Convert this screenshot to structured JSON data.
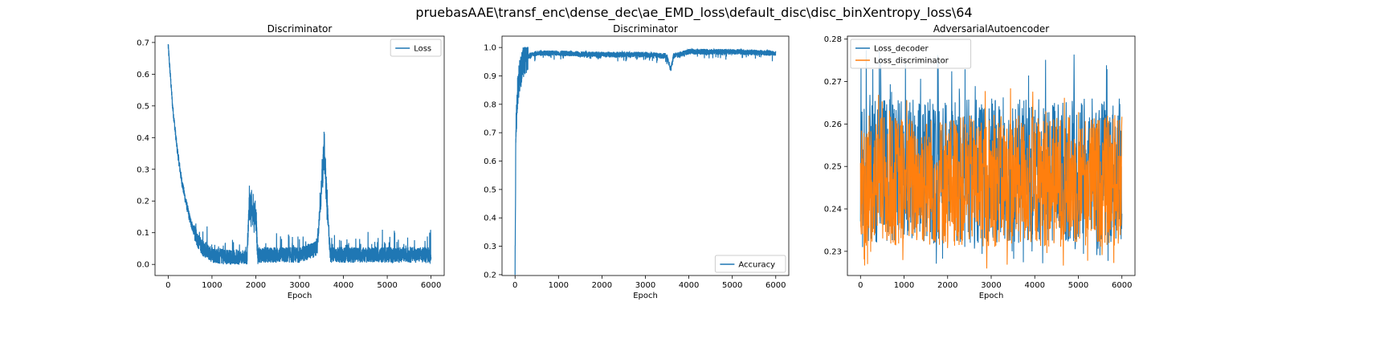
{
  "suptitle": "pruebasAAE\\transf_enc\\dense_dec\\ae_EMD_loss\\default_disc\\disc_binXentropy_loss\\64",
  "colors": {
    "blue": "#1f77b4",
    "orange": "#ff7f0e"
  },
  "chart_data": [
    {
      "type": "line",
      "title": "Discriminator",
      "xlabel": "Epoch",
      "ylabel": "",
      "xlim": [
        -300,
        6300
      ],
      "ylim": [
        -0.035,
        0.72
      ],
      "xticks": [
        0,
        1000,
        2000,
        3000,
        4000,
        5000,
        6000
      ],
      "yticks": [
        0.0,
        0.1,
        0.2,
        0.3,
        0.4,
        0.5,
        0.6,
        0.7
      ],
      "legend_position": "upper-right",
      "series": [
        {
          "name": "Loss",
          "color": "#1f77b4",
          "description_points": [
            [
              0,
              0.69
            ],
            [
              100,
              0.5
            ],
            [
              200,
              0.37
            ],
            [
              300,
              0.27
            ],
            [
              400,
              0.2
            ],
            [
              500,
              0.14
            ],
            [
              600,
              0.1
            ],
            [
              700,
              0.07
            ],
            [
              800,
              0.05
            ],
            [
              1000,
              0.03
            ],
            [
              1500,
              0.02
            ],
            [
              1800,
              0.02
            ],
            [
              1850,
              0.19
            ],
            [
              2000,
              0.15
            ],
            [
              2050,
              0.03
            ],
            [
              3000,
              0.03
            ],
            [
              3400,
              0.05
            ],
            [
              3500,
              0.24
            ],
            [
              3560,
              0.37
            ],
            [
              3620,
              0.2
            ],
            [
              3700,
              0.03
            ],
            [
              4000,
              0.03
            ],
            [
              5000,
              0.03
            ],
            [
              6000,
              0.03
            ]
          ]
        }
      ]
    },
    {
      "type": "line",
      "title": "Discriminator",
      "xlabel": "Epoch",
      "ylabel": "",
      "xlim": [
        -300,
        6300
      ],
      "ylim": [
        0.197,
        1.04
      ],
      "xticks": [
        0,
        1000,
        2000,
        3000,
        4000,
        5000,
        6000
      ],
      "yticks": [
        0.2,
        0.3,
        0.4,
        0.5,
        0.6,
        0.7,
        0.8,
        0.9,
        1.0
      ],
      "legend_position": "lower-right",
      "series": [
        {
          "name": "Accuracy",
          "color": "#1f77b4",
          "description_points": [
            [
              0,
              0.24
            ],
            [
              20,
              0.72
            ],
            [
              60,
              0.85
            ],
            [
              100,
              0.9
            ],
            [
              200,
              0.95
            ],
            [
              300,
              0.98
            ],
            [
              500,
              0.99
            ],
            [
              1000,
              0.99
            ],
            [
              2000,
              0.985
            ],
            [
              3000,
              0.985
            ],
            [
              3500,
              0.98
            ],
            [
              3580,
              0.93
            ],
            [
              3650,
              0.98
            ],
            [
              4000,
              0.995
            ],
            [
              5000,
              0.995
            ],
            [
              6000,
              0.99
            ]
          ]
        }
      ]
    },
    {
      "type": "line",
      "title": "AdversarialAutoencoder",
      "xlabel": "Epoch",
      "ylabel": "",
      "xlim": [
        -300,
        6300
      ],
      "ylim": [
        0.2243,
        0.2807
      ],
      "xticks": [
        0,
        1000,
        2000,
        3000,
        4000,
        5000,
        6000
      ],
      "yticks": [
        0.23,
        0.24,
        0.25,
        0.26,
        0.27,
        0.28
      ],
      "legend_position": "upper-left",
      "series": [
        {
          "name": "Loss_decoder",
          "color": "#1f77b4",
          "band": [
            0.232,
            0.266
          ],
          "peak_max": 0.2775
        },
        {
          "name": "Loss_discriminator",
          "color": "#ff7f0e",
          "band": [
            0.231,
            0.262
          ],
          "peak_max": 0.2705,
          "trough_min": 0.2255
        }
      ]
    }
  ]
}
